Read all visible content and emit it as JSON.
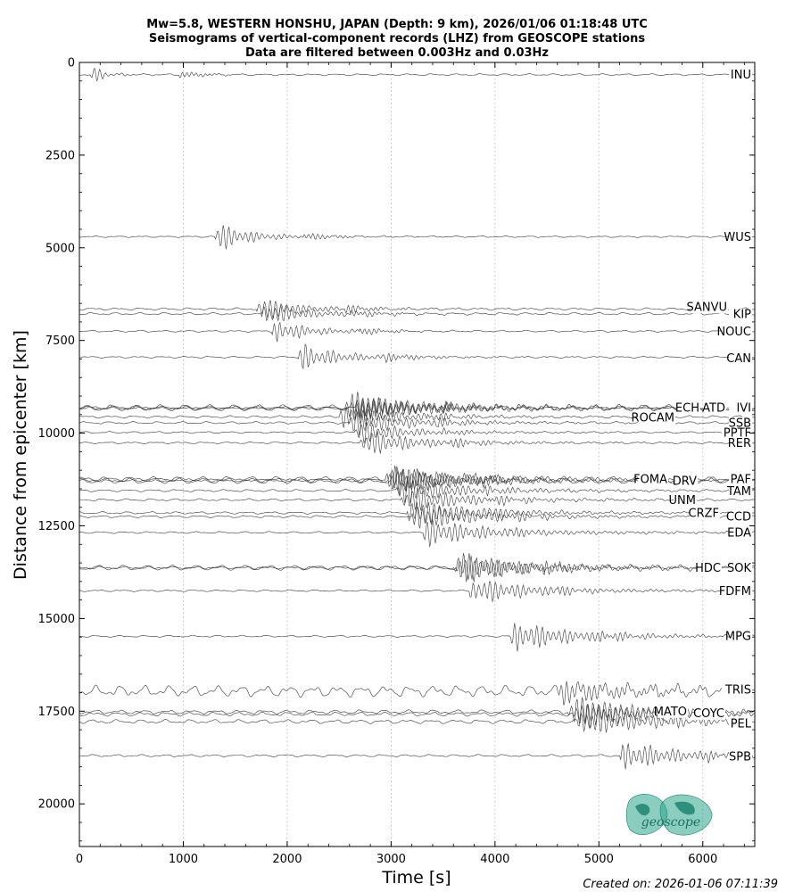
{
  "chart_data": {
    "type": "line",
    "title_lines": [
      "Mw=5.8, WESTERN HONSHU, JAPAN (Depth: 9 km), 2026/01/06 01:18:48 UTC",
      "Seismograms of vertical-component records (LHZ) from GEOSCOPE stations",
      "Data are filtered between 0.003Hz and 0.03Hz"
    ],
    "xlabel": "Time [s]",
    "ylabel": "Distance from epicenter [km]",
    "xlim": [
      0,
      6500
    ],
    "ylim": [
      21150,
      0
    ],
    "y_inverted": true,
    "xticks": [
      "0",
      "1000",
      "2000",
      "3000",
      "4000",
      "5000",
      "6000"
    ],
    "yticks": [
      "0",
      "2500",
      "5000",
      "7500",
      "10000",
      "12500",
      "15000",
      "17500",
      "20000"
    ],
    "x_grid": "dotted vertical lines at major x ticks",
    "traces": [
      {
        "station": "INU",
        "distance_km": 330,
        "arrival_s": 110,
        "amp": 12,
        "noise": 1.2,
        "dur": 150
      },
      {
        "station": "WUS",
        "distance_km": 4700,
        "arrival_s": 1300,
        "amp": 15,
        "noise": 1.0,
        "dur": 500
      },
      {
        "station": "SANVU",
        "distance_km": 6650,
        "arrival_s": 1700,
        "amp": 14,
        "noise": 1.5,
        "dur": 550
      },
      {
        "station": "KIP",
        "distance_km": 6780,
        "arrival_s": 1750,
        "amp": 14,
        "noise": 1.5,
        "dur": 550
      },
      {
        "station": "NOUC",
        "distance_km": 7250,
        "arrival_s": 1850,
        "amp": 13,
        "noise": 1.2,
        "dur": 500
      },
      {
        "station": "CAN",
        "distance_km": 7950,
        "arrival_s": 2100,
        "amp": 14,
        "noise": 1.2,
        "dur": 600
      },
      {
        "station": "ECH",
        "distance_km": 9300,
        "arrival_s": 2550,
        "amp": 16,
        "noise": 3.0,
        "dur": 900
      },
      {
        "station": "ATD",
        "distance_km": 9320,
        "arrival_s": 2600,
        "amp": 15,
        "noise": 2.5,
        "dur": 900
      },
      {
        "station": "IVI",
        "distance_km": 9340,
        "arrival_s": 2650,
        "amp": 14,
        "noise": 2.5,
        "dur": 900
      },
      {
        "station": "ROCAM",
        "distance_km": 9560,
        "arrival_s": 2500,
        "amp": 13,
        "noise": 1.5,
        "dur": 800
      },
      {
        "station": "SSB",
        "distance_km": 9720,
        "arrival_s": 2600,
        "amp": 13,
        "noise": 1.5,
        "dur": 800
      },
      {
        "station": "PPTF",
        "distance_km": 9980,
        "arrival_s": 2650,
        "amp": 12,
        "noise": 1.2,
        "dur": 700
      },
      {
        "station": "RER",
        "distance_km": 10260,
        "arrival_s": 2700,
        "amp": 14,
        "noise": 1.2,
        "dur": 800
      },
      {
        "station": "FOMA",
        "distance_km": 11230,
        "arrival_s": 2950,
        "amp": 16,
        "noise": 2.5,
        "dur": 900
      },
      {
        "station": "DRV",
        "distance_km": 11270,
        "arrival_s": 2980,
        "amp": 15,
        "noise": 2.5,
        "dur": 900
      },
      {
        "station": "PAF",
        "distance_km": 11300,
        "arrival_s": 3000,
        "amp": 15,
        "noise": 2.5,
        "dur": 900
      },
      {
        "station": "TAM",
        "distance_km": 11550,
        "arrival_s": 3050,
        "amp": 14,
        "noise": 1.5,
        "dur": 900
      },
      {
        "station": "UNM",
        "distance_km": 11800,
        "arrival_s": 3100,
        "amp": 14,
        "noise": 1.5,
        "dur": 900
      },
      {
        "station": "CRZF",
        "distance_km": 12150,
        "arrival_s": 3150,
        "amp": 15,
        "noise": 1.5,
        "dur": 900
      },
      {
        "station": "CCD",
        "distance_km": 12250,
        "arrival_s": 3200,
        "amp": 15,
        "noise": 1.5,
        "dur": 900
      },
      {
        "station": "EDA",
        "distance_km": 12680,
        "arrival_s": 3300,
        "amp": 14,
        "noise": 1.2,
        "dur": 1000
      },
      {
        "station": "HDC",
        "distance_km": 13620,
        "arrival_s": 3600,
        "amp": 16,
        "noise": 2.5,
        "dur": 1000
      },
      {
        "station": "SOK",
        "distance_km": 13640,
        "arrival_s": 3620,
        "amp": 15,
        "noise": 2.5,
        "dur": 1000
      },
      {
        "station": "FDFM",
        "distance_km": 14250,
        "arrival_s": 3750,
        "amp": 14,
        "noise": 1.2,
        "dur": 900
      },
      {
        "station": "MPG",
        "distance_km": 15480,
        "arrival_s": 4150,
        "amp": 16,
        "noise": 1.2,
        "dur": 900
      },
      {
        "station": "TRIS",
        "distance_km": 16960,
        "arrival_s": 4600,
        "amp": 12,
        "noise": 7.0,
        "dur": 1200
      },
      {
        "station": "MATO",
        "distance_km": 17520,
        "arrival_s": 4700,
        "amp": 15,
        "noise": 2.5,
        "dur": 1100
      },
      {
        "station": "COYC",
        "distance_km": 17580,
        "arrival_s": 4750,
        "amp": 15,
        "noise": 2.5,
        "dur": 1100
      },
      {
        "station": "PEL",
        "distance_km": 17780,
        "arrival_s": 4800,
        "amp": 15,
        "noise": 2.5,
        "dur": 1100
      },
      {
        "station": "SPB",
        "distance_km": 18700,
        "arrival_s": 5200,
        "amp": 15,
        "noise": 1.5,
        "dur": 900
      }
    ],
    "station_labels": [
      {
        "text": "INU",
        "distance_km": 330
      },
      {
        "text": "WUS",
        "distance_km": 4700
      },
      {
        "text": "SANVU",
        "distance_km": 6590
      },
      {
        "text": "KIP",
        "distance_km": 6790
      },
      {
        "text": "NOUC",
        "distance_km": 7250
      },
      {
        "text": "CAN",
        "distance_km": 7980
      },
      {
        "text": "ECH",
        "distance_km": 9310
      },
      {
        "text": "ATD",
        "distance_km": 9310
      },
      {
        "text": "IVI",
        "distance_km": 9310
      },
      {
        "text": "ROCAM",
        "distance_km": 9580
      },
      {
        "text": "SSB",
        "distance_km": 9720
      },
      {
        "text": "PPTF",
        "distance_km": 9990
      },
      {
        "text": "RER",
        "distance_km": 10260
      },
      {
        "text": "FOMA",
        "distance_km": 11240
      },
      {
        "text": "DRV",
        "distance_km": 11290
      },
      {
        "text": "PAF",
        "distance_km": 11240
      },
      {
        "text": "TAM",
        "distance_km": 11560
      },
      {
        "text": "UNM",
        "distance_km": 11800
      },
      {
        "text": "CRZF",
        "distance_km": 12150
      },
      {
        "text": "CCD",
        "distance_km": 12250
      },
      {
        "text": "EDA",
        "distance_km": 12680
      },
      {
        "text": "HDC",
        "distance_km": 13630
      },
      {
        "text": "SOK",
        "distance_km": 13630
      },
      {
        "text": "FDFM",
        "distance_km": 14260
      },
      {
        "text": "MPG",
        "distance_km": 15470
      },
      {
        "text": "TRIS",
        "distance_km": 16920
      },
      {
        "text": "MATO",
        "distance_km": 17500
      },
      {
        "text": "COYC",
        "distance_km": 17550
      },
      {
        "text": "PEL",
        "distance_km": 17830
      },
      {
        "text": "SPB",
        "distance_km": 18720
      }
    ]
  },
  "logo": {
    "text": "geoscope",
    "color": "#2ca58d"
  },
  "footer": {
    "created": "Created on: 2026-01-06 07:11:39"
  },
  "colors": {
    "trace": "#333333",
    "trace_baseline": "#888888",
    "grid": "#b0b0b0"
  }
}
